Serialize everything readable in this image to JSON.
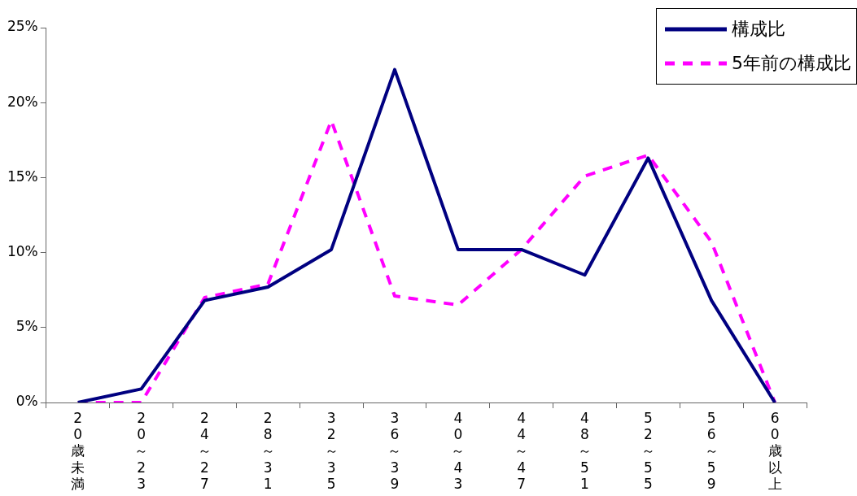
{
  "chart_data": {
    "type": "line",
    "categories": [
      "20歳未満",
      "20～23",
      "24～27",
      "28～31",
      "32～35",
      "36～39",
      "40～43",
      "44～47",
      "48～51",
      "52～55",
      "56～59",
      "60歳以上"
    ],
    "series": [
      {
        "name": "構成比",
        "color": "#000080",
        "line_style": "solid",
        "values": [
          0,
          0.9,
          6.8,
          7.7,
          10.2,
          22.2,
          10.2,
          10.2,
          8.5,
          16.3,
          6.8,
          0
        ]
      },
      {
        "name": "5年前の構成比",
        "color": "#ff00ff",
        "line_style": "dashed",
        "values": [
          0,
          0,
          7.0,
          7.9,
          18.8,
          7.1,
          6.5,
          10.2,
          15.1,
          16.5,
          10.7,
          0
        ]
      }
    ],
    "ylim": [
      0,
      25
    ],
    "yticks": [
      {
        "value": 0,
        "label": "0%"
      },
      {
        "value": 5,
        "label": "5%"
      },
      {
        "value": 10,
        "label": "10%"
      },
      {
        "value": 15,
        "label": "15%"
      },
      {
        "value": 20,
        "label": "20%"
      },
      {
        "value": 25,
        "label": "25%"
      }
    ],
    "grid": false,
    "legend": "top right",
    "marker": "none"
  }
}
